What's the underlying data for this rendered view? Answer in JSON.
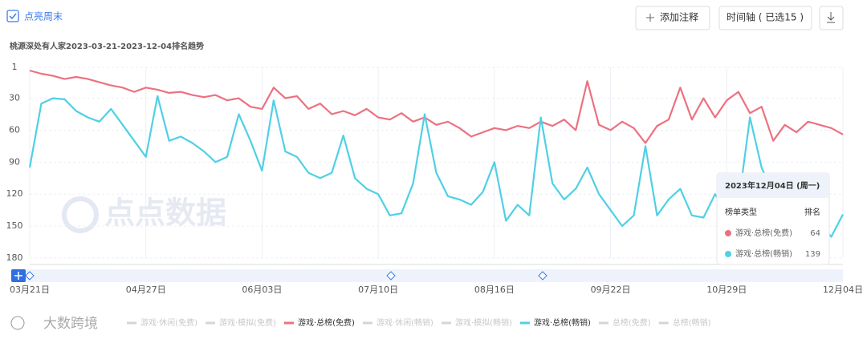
{
  "toolbar": {
    "weekend": "点亮周末",
    "add_note": "添加注释",
    "timeline": "时间轴 ( 已选15 )"
  },
  "chart_data": {
    "type": "line",
    "title": "桃源深处有人家2023-03-21-2023-12-04排名趋势",
    "categories": [
      "03月21日",
      null,
      null,
      null,
      null,
      null,
      null,
      null,
      null,
      null,
      "04月27日",
      null,
      null,
      null,
      null,
      null,
      null,
      null,
      null,
      null,
      "06月03日",
      null,
      null,
      null,
      null,
      null,
      null,
      null,
      null,
      null,
      "07月10日",
      null,
      null,
      null,
      null,
      null,
      null,
      null,
      null,
      null,
      "08月16日",
      null,
      null,
      null,
      null,
      null,
      null,
      null,
      null,
      null,
      "09月22日",
      null,
      null,
      null,
      null,
      null,
      null,
      null,
      null,
      null,
      "10月29日",
      null,
      null,
      null,
      null,
      null,
      null,
      null,
      null,
      null,
      "12月04日"
    ],
    "ylim": [
      1,
      180
    ],
    "y_inverted": true,
    "yticks": [
      1,
      30,
      60,
      90,
      120,
      150,
      180
    ],
    "grid": true,
    "series": [
      {
        "name": "游戏·总榜(免费)",
        "color": "#ec7180",
        "values": [
          4,
          7,
          9,
          12,
          10,
          12,
          15,
          18,
          20,
          24,
          20,
          22,
          25,
          24,
          27,
          29,
          27,
          32,
          30,
          38,
          40,
          20,
          30,
          28,
          40,
          35,
          45,
          42,
          46,
          40,
          48,
          50,
          44,
          52,
          48,
          55,
          52,
          58,
          66,
          62,
          58,
          60,
          56,
          58,
          52,
          56,
          50,
          60,
          14,
          55,
          60,
          52,
          58,
          72,
          56,
          50,
          20,
          50,
          30,
          48,
          32,
          24,
          44,
          38,
          70,
          55,
          62,
          52,
          55,
          58,
          64
        ]
      },
      {
        "name": "游戏·总榜(畅销)",
        "color": "#4fd0e4",
        "values": [
          95,
          35,
          30,
          31,
          42,
          48,
          52,
          40,
          55,
          70,
          85,
          28,
          70,
          66,
          72,
          80,
          90,
          85,
          45,
          70,
          98,
          32,
          80,
          85,
          100,
          105,
          100,
          65,
          105,
          115,
          120,
          140,
          138,
          110,
          45,
          100,
          122,
          125,
          130,
          118,
          90,
          145,
          130,
          140,
          48,
          110,
          125,
          115,
          95,
          120,
          135,
          150,
          140,
          75,
          140,
          125,
          115,
          140,
          142,
          120,
          138,
          130,
          48,
          95,
          120,
          125,
          130,
          140,
          148,
          160,
          139
        ]
      }
    ],
    "inactive_legend": [
      "游戏·休闲(免费)",
      "游戏·模拟(免费)",
      "游戏·休闲(畅销)",
      "游戏·模拟(畅销)",
      "总榜(免费)",
      "总榜(畅销)"
    ]
  },
  "tooltip": {
    "title": "2023年12月04日 (周一)",
    "col_type": "榜单类型",
    "col_rank": "排名"
  },
  "watermarks": [
    "点点数据",
    "大数跨境"
  ]
}
